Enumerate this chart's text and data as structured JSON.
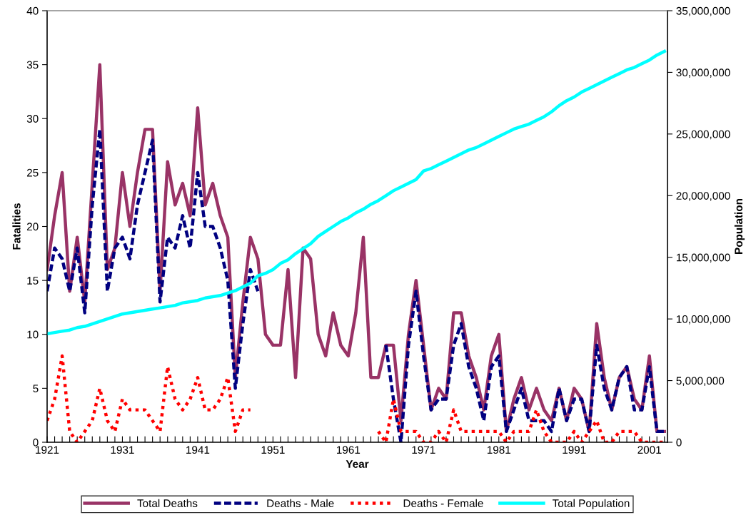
{
  "chart_data": {
    "type": "line",
    "xlabel": "Year",
    "ylabel": "Fatalities",
    "y2label": "Population",
    "categories": [
      "1921",
      null,
      null,
      null,
      null,
      null,
      null,
      null,
      null,
      null,
      "1931",
      null,
      null,
      null,
      null,
      null,
      null,
      null,
      null,
      null,
      "1941",
      null,
      null,
      null,
      null,
      null,
      null,
      null,
      null,
      null,
      "1951",
      null,
      null,
      null,
      null,
      null,
      null,
      null,
      null,
      null,
      "1961",
      null,
      null,
      null,
      null,
      null,
      null,
      null,
      null,
      null,
      "1971",
      null,
      null,
      null,
      null,
      null,
      null,
      null,
      null,
      null,
      "1981",
      null,
      null,
      null,
      null,
      null,
      null,
      null,
      null,
      null,
      "1991",
      null,
      null,
      null,
      null,
      null,
      null,
      null,
      null,
      null,
      "2001",
      null,
      null
    ],
    "series": [
      {
        "name": "Total Deaths",
        "color": "#993366",
        "line_style": "solid",
        "values": [
          16,
          21,
          25,
          14,
          19,
          13,
          24,
          35,
          16,
          18,
          25,
          20,
          25,
          29,
          29,
          14,
          26,
          22,
          24,
          21,
          31,
          22,
          24,
          21,
          19,
          6,
          13,
          19,
          17,
          10,
          9,
          9,
          16,
          6,
          18,
          17,
          10,
          8,
          12,
          9,
          8,
          12,
          19,
          6,
          6,
          9,
          9,
          2,
          10,
          15,
          9,
          3,
          5,
          4,
          12,
          12,
          8,
          6,
          3,
          8,
          10,
          1,
          4,
          6,
          3,
          5,
          3,
          2,
          5,
          2,
          5,
          4,
          1,
          11,
          6,
          3,
          6,
          7,
          4,
          3,
          8,
          1,
          1
        ]
      },
      {
        "name": "Deaths - Male",
        "color": "#000080",
        "line_style": "dashed",
        "values": [
          14,
          18,
          17,
          14,
          18,
          12,
          22,
          29,
          14,
          18,
          19,
          17,
          22,
          25,
          28,
          13,
          19,
          18,
          21,
          18,
          25,
          20,
          20,
          18,
          15,
          5,
          11,
          16,
          14,
          null,
          null,
          null,
          null,
          null,
          null,
          null,
          null,
          null,
          null,
          null,
          null,
          null,
          null,
          null,
          null,
          9,
          4,
          0,
          9,
          14,
          8,
          3,
          4,
          4,
          9,
          11,
          7,
          5,
          2,
          7,
          8,
          1,
          3,
          5,
          2,
          2,
          2,
          1,
          5,
          2,
          4,
          4,
          1,
          9,
          5,
          3,
          6,
          7,
          3,
          3,
          7,
          1,
          1
        ]
      },
      {
        "name": "Deaths - Female",
        "color": "#ff0000",
        "line_style": "dotted",
        "values": [
          2,
          4,
          8,
          1,
          0,
          1,
          2,
          5,
          2,
          1,
          4,
          3,
          3,
          3,
          2,
          1,
          7,
          4,
          3,
          4,
          6,
          3,
          3,
          4,
          6,
          1,
          3,
          3,
          null,
          null,
          null,
          null,
          null,
          null,
          null,
          null,
          null,
          null,
          null,
          null,
          null,
          null,
          null,
          null,
          1,
          0,
          4,
          1,
          1,
          1,
          0,
          0,
          1,
          0,
          3,
          1,
          1,
          1,
          1,
          1,
          1,
          0,
          1,
          1,
          1,
          3,
          1,
          0,
          0,
          0,
          1,
          0,
          1,
          2,
          0,
          0,
          1,
          1,
          1,
          0,
          0,
          0,
          0
        ]
      },
      {
        "name": "Total Population",
        "color": "#00ffff",
        "line_style": "solid",
        "axis": "y2",
        "values": [
          8800000,
          8900000,
          9000000,
          9100000,
          9300000,
          9400000,
          9600000,
          9800000,
          10000000,
          10200000,
          10400000,
          10500000,
          10600000,
          10700000,
          10800000,
          10900000,
          11000000,
          11100000,
          11300000,
          11400000,
          11500000,
          11700000,
          11800000,
          11900000,
          12100000,
          12300000,
          12600000,
          12900000,
          13500000,
          13700000,
          14000000,
          14500000,
          14800000,
          15300000,
          15700000,
          16100000,
          16700000,
          17100000,
          17500000,
          17900000,
          18200000,
          18600000,
          18900000,
          19300000,
          19600000,
          20000000,
          20400000,
          20700000,
          21000000,
          21300000,
          22000000,
          22200000,
          22500000,
          22800000,
          23100000,
          23400000,
          23700000,
          23900000,
          24200000,
          24500000,
          24800000,
          25100000,
          25400000,
          25600000,
          25800000,
          26100000,
          26400000,
          26800000,
          27300000,
          27700000,
          28000000,
          28400000,
          28700000,
          29000000,
          29300000,
          29600000,
          29900000,
          30200000,
          30400000,
          30700000,
          31000000,
          31400000,
          31700000
        ]
      }
    ],
    "ylim": [
      0,
      40
    ],
    "yticks": [
      0,
      5,
      10,
      15,
      20,
      25,
      30,
      35,
      40
    ],
    "y2lim": [
      0,
      35000000
    ],
    "y2ticks": [
      {
        "value": 0,
        "label": "0"
      },
      {
        "value": 5000000,
        "label": "5,000,000"
      },
      {
        "value": 10000000,
        "label": "10,000,000"
      },
      {
        "value": 15000000,
        "label": "15,000,000"
      },
      {
        "value": 20000000,
        "label": "20,000,000"
      },
      {
        "value": 25000000,
        "label": "25,000,000"
      },
      {
        "value": 30000000,
        "label": "30,000,000"
      },
      {
        "value": 35000000,
        "label": "35,000,000"
      }
    ],
    "grid": false,
    "legend": "bottom",
    "marker": "none"
  }
}
